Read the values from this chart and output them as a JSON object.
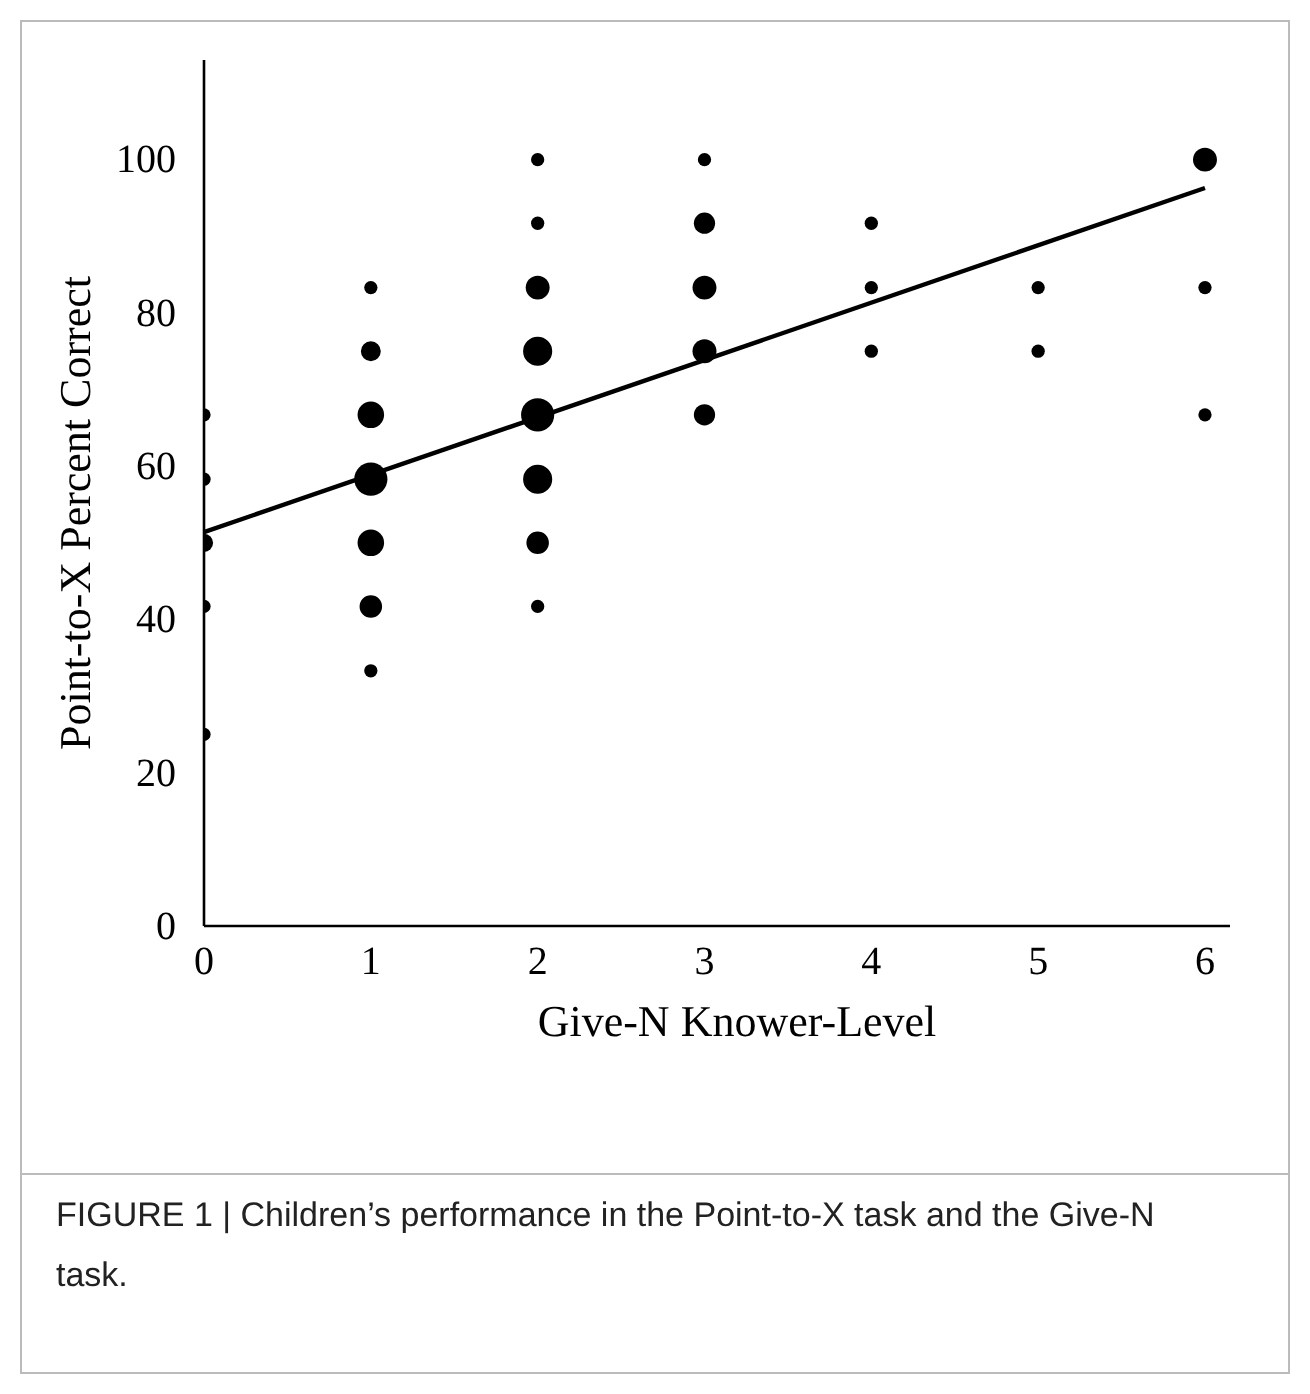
{
  "chart_data": {
    "type": "bubble",
    "xlabel": "Give-N Knower-Level",
    "ylabel": "Point-to-X Percent Correct",
    "xlim": [
      0,
      6.15
    ],
    "xticks": [
      0,
      1,
      2,
      3,
      4,
      5,
      6
    ],
    "ylim": [
      0,
      113
    ],
    "yticks": [
      0,
      20,
      40,
      60,
      80,
      100
    ],
    "grid": false,
    "marker": "circle",
    "series": [
      {
        "color": "#000000",
        "x": [
          0,
          0,
          0,
          0,
          0,
          1,
          1,
          1,
          1,
          1,
          1,
          1,
          2,
          2,
          2,
          2,
          2,
          2,
          2,
          2,
          3,
          3,
          3,
          3,
          3,
          4,
          4,
          4,
          5,
          5,
          6,
          6,
          6
        ],
        "values": [
          66.7,
          58.3,
          50,
          41.7,
          25,
          83.3,
          75,
          66.7,
          58.3,
          50,
          41.7,
          33.3,
          100,
          91.7,
          83.3,
          75,
          66.7,
          58.3,
          50,
          41.7,
          100,
          91.7,
          83.3,
          75,
          66.7,
          91.7,
          83.3,
          75,
          83.3,
          75,
          100,
          83.3,
          66.7
        ],
        "sizes": [
          0.16,
          0.16,
          0.3,
          0.16,
          0.16,
          0.16,
          0.36,
          0.64,
          1,
          0.64,
          0.46,
          0.16,
          0.16,
          0.16,
          0.52,
          0.77,
          1,
          0.77,
          0.46,
          0.16,
          0.16,
          0.41,
          0.52,
          0.52,
          0.41,
          0.16,
          0.16,
          0.16,
          0.16,
          0.16,
          0.52,
          0.16,
          0.16
        ]
      },
      {
        "type": "line",
        "color": "#000000",
        "x": [
          0,
          6
        ],
        "values": [
          51.4,
          96.3
        ],
        "marker": "none"
      }
    ],
    "annotations": [
      "FIGURE 1 | Children’s performance in the Point-to-X task and the Give-N task."
    ]
  }
}
